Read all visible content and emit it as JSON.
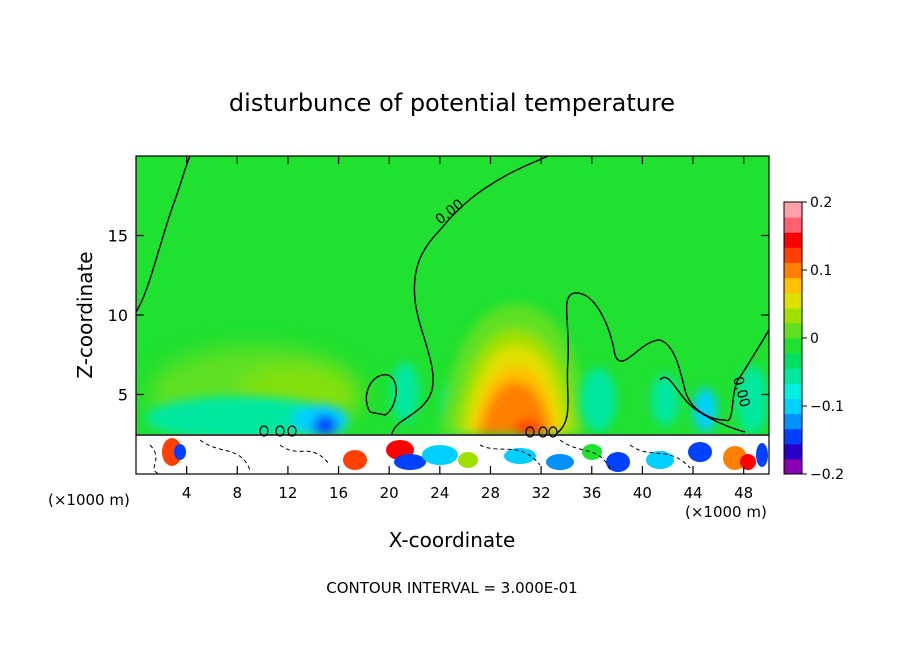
{
  "chart_data": {
    "type": "heatmap",
    "title": "disturbunce of potential temperature",
    "xlabel": "X-coordinate",
    "ylabel": "Z-coordinate",
    "x_unit_label": "(×1000 m)",
    "z_unit_label": "(×1000 m)",
    "xlim": [
      0,
      50
    ],
    "ylim": [
      0,
      20
    ],
    "x_ticks": [
      4,
      8,
      12,
      16,
      20,
      24,
      28,
      32,
      36,
      40,
      44,
      48
    ],
    "y_ticks": [
      5,
      10,
      15
    ],
    "contour_interval_text": "CONTOUR INTERVAL = 3.000E-01",
    "contour_labels": [
      "0.00",
      "0.00"
    ],
    "colorbar": {
      "ticks": [
        "0.2",
        "0.1",
        "0",
        "−0.1",
        "−0.2"
      ],
      "tick_values": [
        0.2,
        0.1,
        0,
        -0.1,
        -0.2
      ],
      "range": [
        -0.2,
        0.2
      ],
      "colors": [
        "#8b00b0",
        "#2a00c8",
        "#0040ff",
        "#0090ff",
        "#00d0ff",
        "#00f0e0",
        "#00e8a0",
        "#00e060",
        "#20e030",
        "#60e020",
        "#a0e000",
        "#e0e000",
        "#ffc000",
        "#ff8000",
        "#ff4000",
        "#ff0000",
        "#ff6070",
        "#ffa0a8"
      ]
    },
    "fields": {
      "background_value": 0.0,
      "warm_anomaly": {
        "x_center": 30,
        "z_center": 4,
        "peak": 0.14
      },
      "weak_warm_anomaly": {
        "x_center": 13,
        "z_center": 5.5,
        "peak": 0.03
      },
      "cold_anomaly": {
        "x_center": 14.5,
        "z_center": 3,
        "peak": -0.11
      },
      "boundary_layer_top_z": 2.4
    }
  }
}
